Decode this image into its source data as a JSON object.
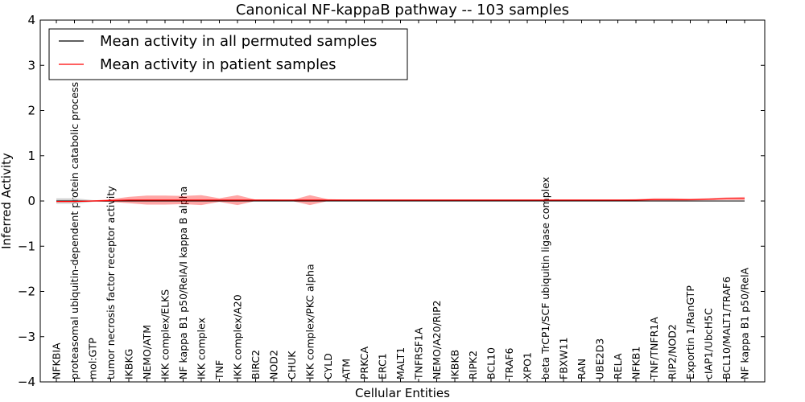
{
  "chart_data": {
    "type": "line",
    "title": "Canonical NF-kappaB pathway -- 103 samples",
    "xlabel": "Cellular Entities",
    "ylabel": "Inferred Activity",
    "ylim": [
      -4,
      4
    ],
    "yticks": [
      4,
      3,
      2,
      1,
      0,
      -1,
      -2,
      -3,
      -4
    ],
    "ytick_labels": [
      "4",
      "3",
      "2",
      "1",
      "0",
      "−1",
      "−2",
      "−3",
      "−4"
    ],
    "legend_location": "top-left",
    "categories": [
      "NFKBIA",
      "proteasomal ubiquitin-dependent protein catabolic process",
      "mol:GTP",
      "tumor necrosis factor receptor activity",
      "IKBKG",
      "NEMO/ATM",
      "IKK complex/ELKS",
      "NF kappa B1 p50/RelA/I kappa B alpha",
      "IKK complex",
      "TNF",
      "IKK complex/A20",
      "BIRC2",
      "NOD2",
      "CHUK",
      "IKK complex/PKC alpha",
      "CYLD",
      "ATM",
      "PRKCA",
      "ERC1",
      "MALT1",
      "TNFRSF1A",
      "NEMO/A20/RIP2",
      "IKBKB",
      "RIPK2",
      "BCL10",
      "TRAF6",
      "XPO1",
      "beta TrCP1/SCF ubiquitin ligase complex",
      "FBXW11",
      "RAN",
      "UBE2D3",
      "RELA",
      "NFKB1",
      "TNF/TNFR1A",
      "RIP2/NOD2",
      "Exportin 1/RanGTP",
      "cIAP1/UbcH5C",
      "BCL10/MALT1/TRAF6",
      "NF kappa B1 p50/RelA"
    ],
    "series": [
      {
        "name": "Mean activity in all permuted samples",
        "color": "#000000",
        "values": [
          0,
          0,
          0,
          0,
          0,
          0,
          0,
          0,
          0,
          0,
          0,
          0,
          0,
          0,
          0,
          0,
          0,
          0,
          0,
          0,
          0,
          0,
          0,
          0,
          0,
          0,
          0,
          0,
          0,
          0,
          0,
          0,
          0,
          0,
          0,
          0,
          0,
          0,
          0
        ]
      },
      {
        "name": "Mean activity in patient samples",
        "color": "#ff0000",
        "values": [
          -0.01,
          -0.01,
          0,
          0.01,
          0.02,
          0.02,
          0.02,
          0.02,
          0.02,
          0.02,
          0.02,
          0.02,
          0.02,
          0.02,
          0.02,
          0.02,
          0.02,
          0.02,
          0.02,
          0.02,
          0.02,
          0.02,
          0.02,
          0.02,
          0.02,
          0.02,
          0.02,
          0.02,
          0.02,
          0.02,
          0.02,
          0.02,
          0.02,
          0.03,
          0.03,
          0.03,
          0.04,
          0.05,
          0.05
        ],
        "band_upper": [
          0.01,
          0.01,
          0.01,
          0.04,
          0.09,
          0.12,
          0.12,
          0.11,
          0.13,
          0.06,
          0.13,
          0.03,
          0.03,
          0.02,
          0.13,
          0.04,
          0.03,
          0.03,
          0.03,
          0.03,
          0.03,
          0.03,
          0.03,
          0.03,
          0.03,
          0.03,
          0.03,
          0.03,
          0.03,
          0.03,
          0.03,
          0.03,
          0.04,
          0.06,
          0.06,
          0.05,
          0.06,
          0.08,
          0.09
        ],
        "band_lower": [
          -0.02,
          -0.02,
          -0.01,
          -0.02,
          -0.05,
          -0.08,
          -0.08,
          -0.07,
          -0.09,
          -0.02,
          -0.09,
          0,
          0,
          0,
          -0.09,
          0,
          0,
          0,
          0,
          0,
          0,
          0,
          0,
          0,
          0,
          0,
          0,
          0,
          0,
          0,
          0,
          0,
          0,
          0,
          0,
          0.01,
          0.02,
          0.03,
          0.03
        ]
      }
    ],
    "permuted_band": {
      "color": "#c8c8c8",
      "upper": [
        0.06,
        0.06,
        0.02,
        0.01,
        0,
        0,
        0,
        0,
        0,
        0,
        0,
        0,
        0,
        0,
        0,
        0,
        0,
        0,
        0,
        0,
        0,
        0,
        0,
        0,
        0,
        0,
        0,
        0,
        0,
        0,
        0,
        0,
        0,
        0,
        0,
        0,
        0,
        0,
        0
      ],
      "lower": [
        -0.06,
        -0.06,
        -0.02,
        -0.01,
        0,
        0,
        0,
        0,
        0,
        0,
        0,
        0,
        0,
        0,
        0,
        0,
        0,
        0,
        0,
        0,
        0,
        0,
        0,
        0,
        0,
        0,
        0,
        0,
        0,
        0,
        0,
        0,
        0,
        0,
        0,
        0,
        0,
        0,
        0
      ]
    }
  }
}
